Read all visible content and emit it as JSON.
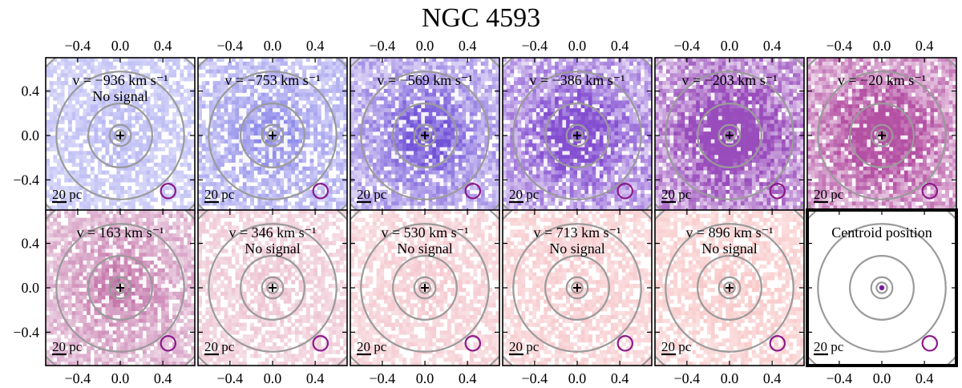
{
  "chart_data": {
    "type": "heatmap",
    "title": "NGC 4593",
    "xlabel": "",
    "ylabel": "",
    "xlim": [
      -0.7,
      0.7
    ],
    "ylim": [
      -0.7,
      0.7
    ],
    "xticks": [
      -0.4,
      0.0,
      0.4
    ],
    "yticks": [
      0.4,
      0.0,
      -0.4
    ],
    "xtick_labels": [
      "−0.4",
      "0.0",
      "0.4"
    ],
    "ytick_labels": [
      "0.4",
      "0.0",
      "−0.4"
    ],
    "scale_bar_label": "20 pc",
    "contour_radii": [
      0.05,
      0.1,
      0.3,
      0.6,
      0.95
    ],
    "beam_center": [
      0.45,
      -0.5
    ],
    "beam_radius": 0.05,
    "colors": {
      "contour": "#9a9a9a",
      "beam": "#8b1a8b",
      "marker": "#000000",
      "frame": "#000000",
      "centroid_marker": "#7a1a9a"
    },
    "panels": [
      {
        "id": "v-936",
        "velocity": "−936",
        "unit": "km s⁻¹",
        "velocity_label": "v = −936 km s⁻¹",
        "note": "No signal",
        "intensity": 0.1,
        "color": "#5a5ae6",
        "seed": 11
      },
      {
        "id": "v-753",
        "velocity": "−753",
        "unit": "km s⁻¹",
        "velocity_label": "v = −753 km s⁻¹",
        "note": "",
        "intensity": 0.3,
        "color": "#5a55e0",
        "seed": 23
      },
      {
        "id": "v-569",
        "velocity": "−569",
        "unit": "km s⁻¹",
        "velocity_label": "v = −569 km s⁻¹",
        "note": "",
        "intensity": 0.55,
        "color": "#6a4ad6",
        "seed": 37
      },
      {
        "id": "v-386",
        "velocity": "−386",
        "unit": "km s⁻¹",
        "velocity_label": "v = −386 km s⁻¹",
        "note": "",
        "intensity": 0.7,
        "color": "#7d45cf",
        "seed": 41
      },
      {
        "id": "v-203",
        "velocity": "−203",
        "unit": "km s⁻¹",
        "velocity_label": "v = −203 km s⁻¹",
        "note": "",
        "intensity": 0.9,
        "color": "#9443b8",
        "seed": 53
      },
      {
        "id": "v-20",
        "velocity": "−20",
        "unit": "km s⁻¹",
        "velocity_label": "v = −20 km s⁻¹",
        "note": "",
        "intensity": 0.8,
        "color": "#b0479e",
        "seed": 67
      },
      {
        "id": "v163",
        "velocity": "163",
        "unit": "km s⁻¹",
        "velocity_label": "v = 163 km s⁻¹",
        "note": "",
        "intensity": 0.45,
        "color": "#bb5f9c",
        "seed": 71
      },
      {
        "id": "v346",
        "velocity": "346",
        "unit": "km s⁻¹",
        "velocity_label": "v = 346 km s⁻¹",
        "note": "No signal",
        "intensity": 0.08,
        "color": "#d36a8c",
        "seed": 83
      },
      {
        "id": "v530",
        "velocity": "530",
        "unit": "km s⁻¹",
        "velocity_label": "v = 530 km s⁻¹",
        "note": "No signal",
        "intensity": 0.06,
        "color": "#e2707f",
        "seed": 97
      },
      {
        "id": "v713",
        "velocity": "713",
        "unit": "km s⁻¹",
        "velocity_label": "v = 713 km s⁻¹",
        "note": "No signal",
        "intensity": 0.06,
        "color": "#ea7077",
        "seed": 101
      },
      {
        "id": "v896",
        "velocity": "896",
        "unit": "km s⁻¹",
        "velocity_label": "v = 896 km s⁻¹",
        "note": "No signal",
        "intensity": 0.06,
        "color": "#ee6f70",
        "seed": 113
      },
      {
        "id": "centroid",
        "velocity": "",
        "unit": "",
        "velocity_label": "Centroid position",
        "note": "",
        "intensity": 0.0,
        "color": "#ffffff",
        "seed": 0,
        "is_centroid": true
      }
    ]
  }
}
